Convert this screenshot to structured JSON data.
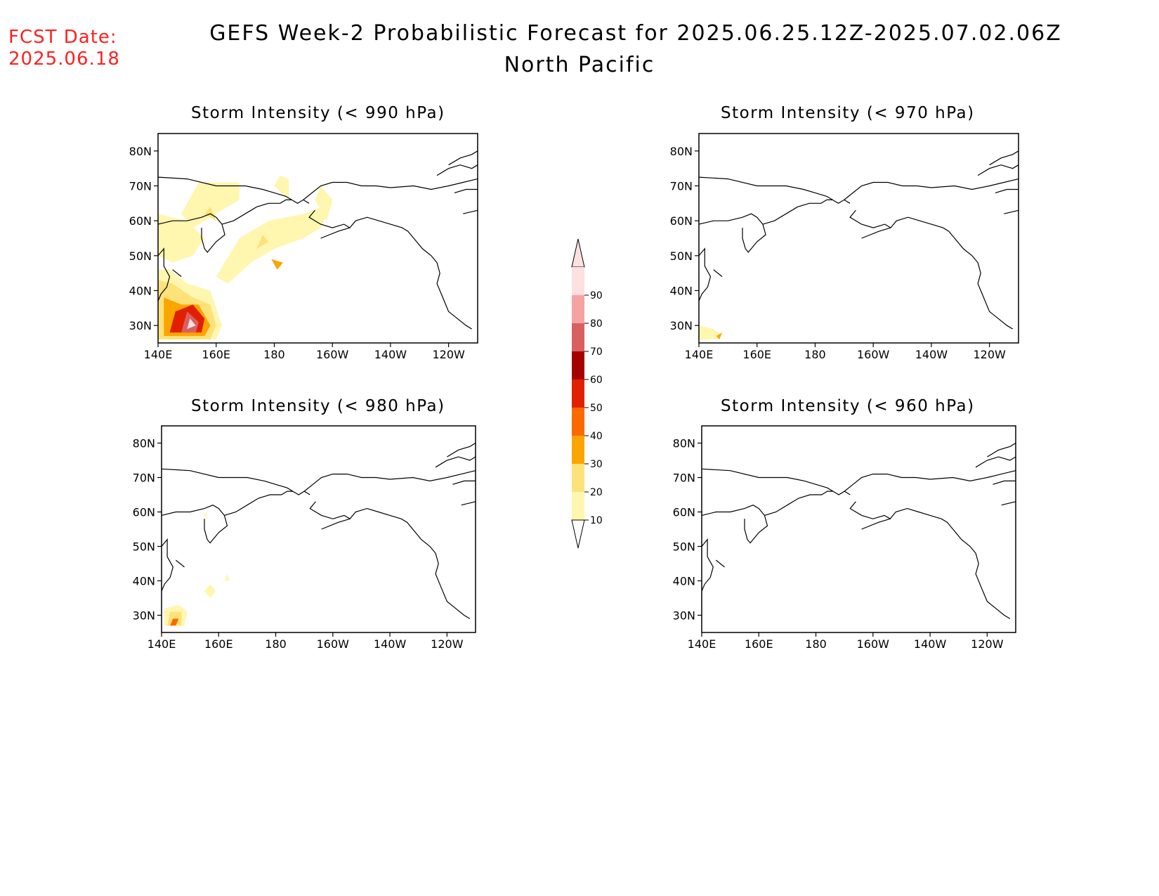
{
  "header": {
    "fcst_label": "FCST Date:",
    "fcst_date": "2025.06.18",
    "title_line1": "GEFS Week-2 Probabilistic Forecast for 2025.06.25.12Z-2025.07.02.06Z",
    "title_line2": "North Pacific"
  },
  "panels": [
    {
      "id": "p990",
      "title": "Storm Intensity (< 990 hPa)"
    },
    {
      "id": "p970",
      "title": "Storm Intensity (< 970 hPa)"
    },
    {
      "id": "p980",
      "title": "Storm Intensity (< 980 hPa)"
    },
    {
      "id": "p960",
      "title": "Storm Intensity (< 960 hPa)"
    }
  ],
  "axes": {
    "lat_ticks": [
      "80N",
      "70N",
      "60N",
      "50N",
      "40N",
      "30N"
    ],
    "lat_values": [
      80,
      70,
      60,
      50,
      40,
      30
    ],
    "lon_ticks": [
      "140E",
      "160E",
      "180",
      "160W",
      "140W",
      "120W"
    ],
    "lon_values": [
      140,
      160,
      180,
      200,
      220,
      240
    ],
    "lon_range": [
      140,
      250
    ],
    "lat_range": [
      25,
      85
    ]
  },
  "colorbar": {
    "levels": [
      "10",
      "20",
      "30",
      "40",
      "50",
      "60",
      "70",
      "80",
      "90"
    ],
    "colors": [
      "#fff6b0",
      "#fde27a",
      "#fba500",
      "#fb6a00",
      "#e02000",
      "#a50000",
      "#d96060",
      "#f4a2a2",
      "#fde0e0"
    ]
  },
  "contours": {
    "p990": [
      {
        "level": 1,
        "pts": [
          [
            148,
            62
          ],
          [
            154,
            71
          ],
          [
            168,
            71
          ],
          [
            168,
            66
          ],
          [
            160,
            62
          ],
          [
            152,
            58
          ]
        ]
      },
      {
        "level": 1,
        "pts": [
          [
            140,
            62
          ],
          [
            150,
            60
          ],
          [
            156,
            55
          ],
          [
            152,
            50
          ],
          [
            145,
            48
          ],
          [
            140,
            50
          ]
        ]
      },
      {
        "level": 1,
        "pts": [
          [
            160,
            44
          ],
          [
            168,
            55
          ],
          [
            178,
            60
          ],
          [
            190,
            62
          ],
          [
            200,
            65
          ],
          [
            196,
            58
          ],
          [
            190,
            55
          ],
          [
            180,
            52
          ],
          [
            172,
            48
          ],
          [
            164,
            42
          ]
        ]
      },
      {
        "level": 1,
        "pts": [
          [
            180,
            70
          ],
          [
            185,
            66
          ],
          [
            185,
            72
          ],
          [
            182,
            73
          ]
        ]
      },
      {
        "level": 1,
        "pts": [
          [
            196,
            70
          ],
          [
            200,
            66
          ],
          [
            198,
            60
          ],
          [
            194,
            66
          ]
        ]
      },
      {
        "level": 2,
        "pts": [
          [
            174,
            52
          ],
          [
            178,
            54
          ],
          [
            176,
            56
          ]
        ]
      },
      {
        "level": 2,
        "pts": [
          [
            156,
            62
          ],
          [
            160,
            60
          ],
          [
            158,
            64
          ]
        ]
      },
      {
        "level": 3,
        "pts": [
          [
            179,
            49
          ],
          [
            183,
            48
          ],
          [
            181,
            46
          ]
        ]
      },
      {
        "level": 1,
        "pts": [
          [
            140,
            26
          ],
          [
            140,
            46
          ],
          [
            144,
            46
          ],
          [
            150,
            42
          ],
          [
            158,
            40
          ],
          [
            162,
            30
          ],
          [
            160,
            26
          ]
        ]
      },
      {
        "level": 2,
        "pts": [
          [
            140,
            26
          ],
          [
            140,
            43
          ],
          [
            145,
            42
          ],
          [
            152,
            38
          ],
          [
            158,
            36
          ],
          [
            160,
            30
          ],
          [
            158,
            26
          ]
        ]
      },
      {
        "level": 3,
        "pts": [
          [
            142,
            27
          ],
          [
            142,
            38
          ],
          [
            148,
            36
          ],
          [
            154,
            36
          ],
          [
            158,
            30
          ],
          [
            156,
            27
          ]
        ]
      },
      {
        "level": 5,
        "pts": [
          [
            144,
            28
          ],
          [
            146,
            34
          ],
          [
            152,
            36
          ],
          [
            156,
            32
          ],
          [
            155,
            28
          ]
        ]
      },
      {
        "level": 7,
        "pts": [
          [
            148,
            28
          ],
          [
            150,
            34
          ],
          [
            154,
            31
          ],
          [
            153,
            28
          ]
        ]
      },
      {
        "level": 9,
        "pts": [
          [
            150,
            29
          ],
          [
            151,
            32
          ],
          [
            153,
            30
          ]
        ]
      }
    ],
    "p970": [
      {
        "level": 1,
        "pts": [
          [
            140,
            26
          ],
          [
            140,
            30
          ],
          [
            145,
            29
          ],
          [
            148,
            27
          ],
          [
            146,
            26
          ]
        ]
      },
      {
        "level": 3,
        "pts": [
          [
            146,
            27
          ],
          [
            148,
            28
          ],
          [
            147,
            26
          ]
        ]
      }
    ],
    "p980": [
      {
        "level": 1,
        "pts": [
          [
            141,
            27
          ],
          [
            141,
            32
          ],
          [
            146,
            33
          ],
          [
            149,
            31
          ],
          [
            148,
            27
          ]
        ]
      },
      {
        "level": 2,
        "pts": [
          [
            142,
            27
          ],
          [
            143,
            31
          ],
          [
            147,
            31
          ],
          [
            147,
            27
          ]
        ]
      },
      {
        "level": 4,
        "pts": [
          [
            143,
            27
          ],
          [
            144,
            29
          ],
          [
            146,
            29
          ],
          [
            145,
            27
          ]
        ]
      },
      {
        "level": 1,
        "pts": [
          [
            155,
            37
          ],
          [
            157,
            39
          ],
          [
            159,
            37
          ],
          [
            157,
            35
          ]
        ]
      },
      {
        "level": 1,
        "pts": [
          [
            162,
            40
          ],
          [
            163,
            42
          ],
          [
            164,
            40
          ]
        ]
      },
      {
        "level": 1,
        "pts": [
          [
            155,
            59
          ],
          [
            156,
            60
          ],
          [
            156,
            58
          ]
        ]
      }
    ],
    "p960": []
  }
}
